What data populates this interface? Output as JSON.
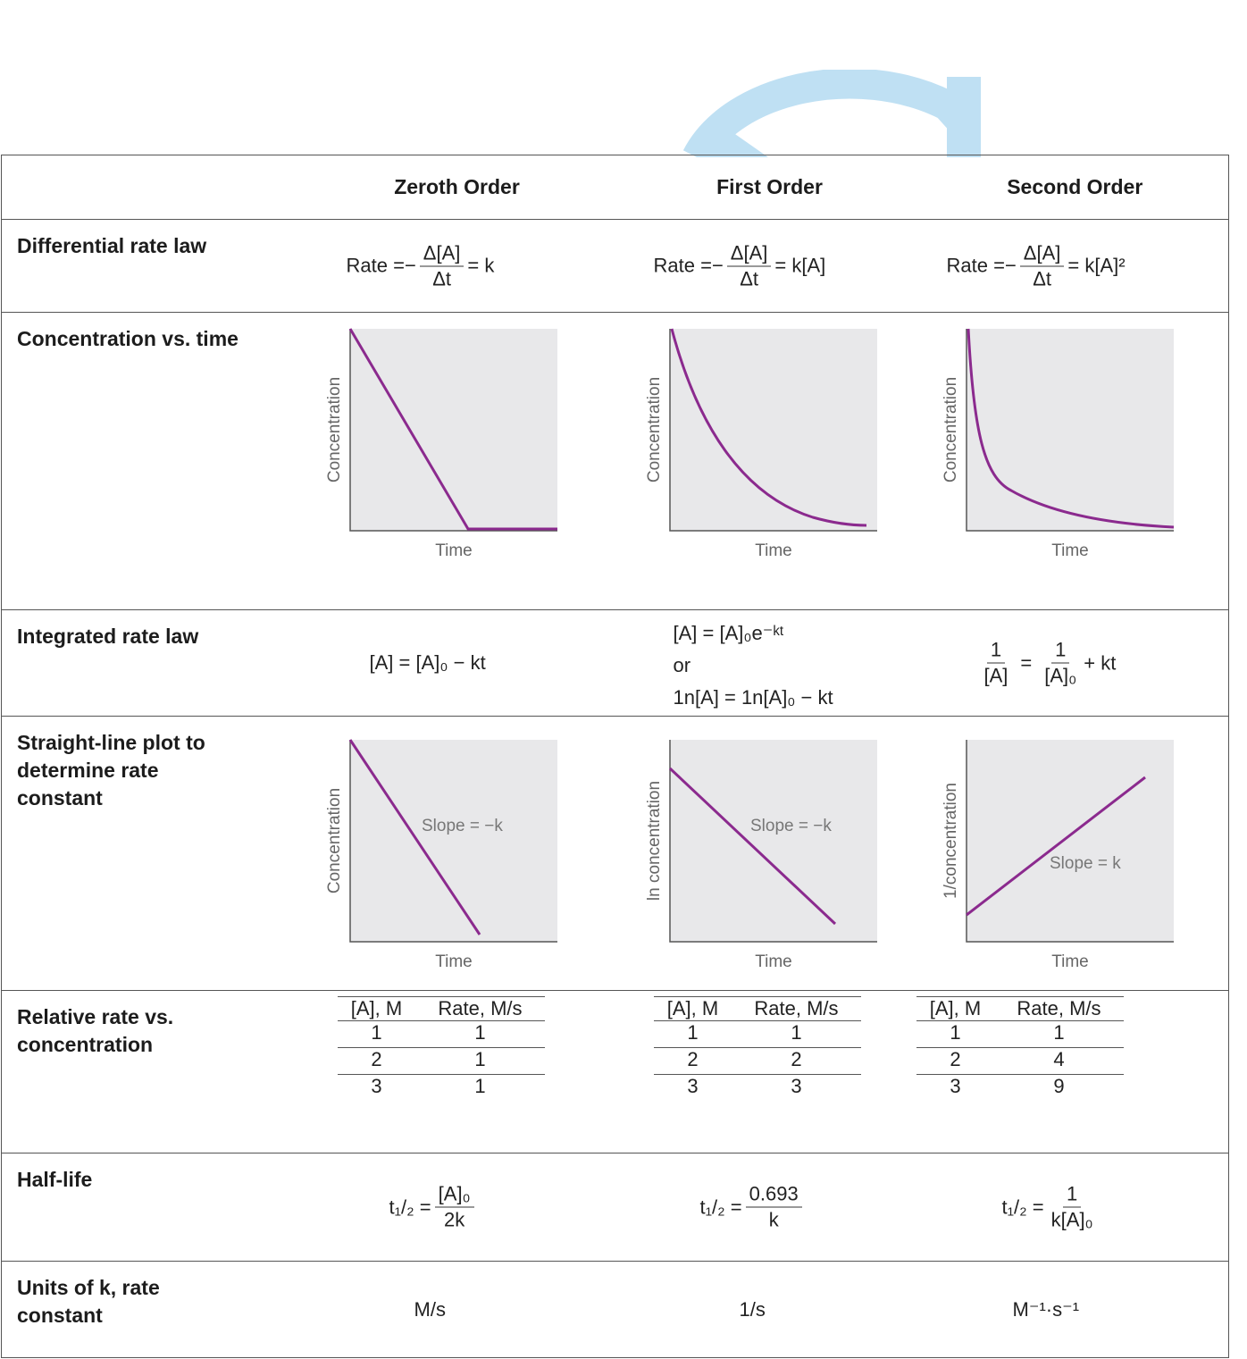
{
  "columns": {
    "zeroth": "Zeroth Order",
    "first": "First Order",
    "second": "Second Order"
  },
  "rows": {
    "differential": "Differential rate law",
    "concentration": "Concentration vs. time",
    "integrated": "Integrated rate law",
    "straight": "Straight-line plot to determine rate constant",
    "relative": "Relative rate vs. concentration",
    "halflife": "Half-life",
    "units": "Units of k, rate constant"
  },
  "equations": {
    "rate_word": "Rate =",
    "minus": "−",
    "delta_num": "Δ[A]",
    "delta_den": "Δt",
    "zeroth_rhs": "= k",
    "first_rhs": "= k[A]",
    "second_rhs": "= k[A]²",
    "int_zeroth": "[A] = [A]₀ − kt",
    "int_first_1": "[A] = [A]₀e⁻ᵏᵗ",
    "int_first_or": "or",
    "int_first_2": "1n[A] = 1n[A]₀ − kt",
    "int_second_lhs_num": "1",
    "int_second_lhs_den": "[A]",
    "int_second_eq": "=",
    "int_second_rhs_num": "1",
    "int_second_rhs_den": "[A]₀",
    "int_second_tail": "+ kt",
    "half_prefix": "t₁/₂ =",
    "half_zeroth_num": "[A]₀",
    "half_zeroth_den": "2k",
    "half_first_num": "0.693",
    "half_first_den": "k",
    "half_second_num": "1",
    "half_second_den": "k[A]₀",
    "units_zeroth": "M/s",
    "units_first": "1/s",
    "units_second": "M⁻¹·s⁻¹"
  },
  "plots": {
    "time_label": "Time",
    "conc_label": "Concentration",
    "ln_label": "ln concentration",
    "inv_label": "1/concentration",
    "slope_neg": "Slope = −k",
    "slope_pos": "Slope = k",
    "curve_color": "#8b2a8e",
    "bg_color": "#e8e8ea"
  },
  "tables": {
    "head_conc": "[A], M",
    "head_rate": "Rate, M/s",
    "zeroth": [
      [
        "1",
        "1"
      ],
      [
        "2",
        "1"
      ],
      [
        "3",
        "1"
      ]
    ],
    "first": [
      [
        "1",
        "1"
      ],
      [
        "2",
        "2"
      ],
      [
        "3",
        "3"
      ]
    ],
    "second": [
      [
        "1",
        "1"
      ],
      [
        "2",
        "4"
      ],
      [
        "3",
        "9"
      ]
    ]
  },
  "colors": {
    "arrow": "#bfe0f3",
    "border": "#555555"
  }
}
